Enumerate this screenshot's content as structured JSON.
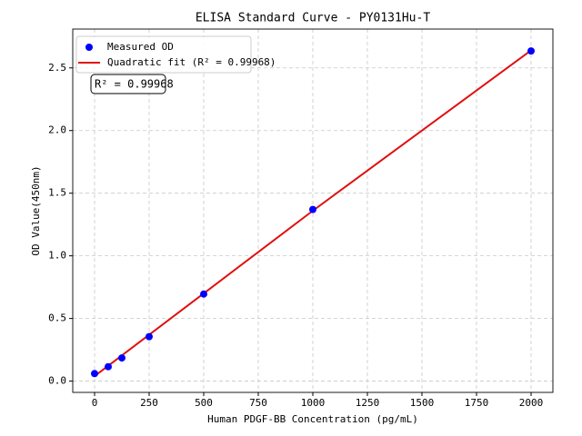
{
  "chart_data": {
    "type": "scatter",
    "title": "ELISA Standard Curve - PY0131Hu-T",
    "xlabel": "Human PDGF-BB Concentration (pg/mL)",
    "ylabel": "OD Value(450nm)",
    "series": [
      {
        "name": "Measured OD",
        "type": "scatter",
        "color": "#0000ff",
        "x": [
          0,
          62.5,
          125,
          250,
          500,
          1000,
          2000
        ],
        "values": [
          0.06,
          0.115,
          0.185,
          0.355,
          0.695,
          1.37,
          2.635
        ]
      },
      {
        "name": "Quadratic fit (R² = 0.99968)",
        "type": "line",
        "color": "#e01010",
        "x": [
          0,
          500,
          1000,
          1500,
          2000
        ],
        "values": [
          0.04,
          0.7,
          1.36,
          2.0,
          2.64
        ]
      }
    ],
    "annotations": [
      "R² = 0.99968"
    ],
    "xlim": [
      -100,
      2100
    ],
    "xticks": [
      0,
      250,
      500,
      750,
      1000,
      1250,
      1500,
      1750,
      2000
    ],
    "ylim": [
      -0.09,
      2.81
    ],
    "yticks": [
      {
        "value": 0,
        "label": "0.0"
      },
      0.5,
      {
        "value": 1,
        "label": "1.0"
      },
      1.5,
      {
        "value": 2,
        "label": "2.0"
      },
      2.5
    ],
    "grid": true,
    "legend": "upper left"
  }
}
